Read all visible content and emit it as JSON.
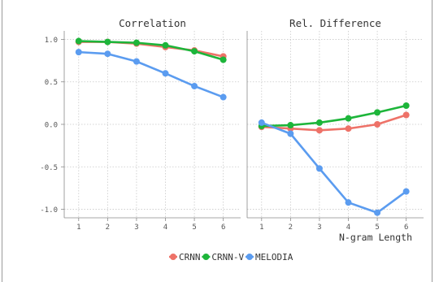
{
  "chart_data": [
    {
      "type": "line",
      "title": "Correlation",
      "x": [
        1,
        2,
        3,
        4,
        5,
        6
      ],
      "xlabel": "",
      "ylabel": "",
      "ylim": [
        -1.1,
        1.1
      ],
      "yticks": [
        "1.0",
        "0.5",
        "0.0",
        "-0.5",
        "-1.0"
      ],
      "series": [
        {
          "name": "CRNN",
          "values": [
            0.97,
            0.97,
            0.95,
            0.91,
            0.87,
            0.8
          ]
        },
        {
          "name": "CRNN-V",
          "values": [
            0.98,
            0.97,
            0.96,
            0.93,
            0.86,
            0.76
          ]
        },
        {
          "name": "MELODIA",
          "values": [
            0.85,
            0.83,
            0.74,
            0.6,
            0.45,
            0.32
          ]
        }
      ]
    },
    {
      "type": "line",
      "title": "Rel. Difference",
      "x": [
        1,
        2,
        3,
        4,
        5,
        6
      ],
      "xlabel": "N-gram Length",
      "ylabel": "",
      "ylim": [
        -1.1,
        1.1
      ],
      "series": [
        {
          "name": "CRNN",
          "values": [
            -0.03,
            -0.05,
            -0.07,
            -0.05,
            0.0,
            0.11
          ]
        },
        {
          "name": "CRNN-V",
          "values": [
            -0.02,
            -0.01,
            0.02,
            0.07,
            0.14,
            0.22
          ]
        },
        {
          "name": "MELODIA",
          "values": [
            0.02,
            -0.11,
            -0.52,
            -0.92,
            -1.04,
            -0.79
          ]
        }
      ]
    }
  ],
  "legend": {
    "position": "bottom",
    "items": [
      {
        "label": "CRNN",
        "color": "#ee7268"
      },
      {
        "label": "CRNN-V",
        "color": "#1db53a"
      },
      {
        "label": "MELODIA",
        "color": "#5b9cf0"
      }
    ]
  },
  "style": {
    "grid": true,
    "panel_background": "#ffffff",
    "grid_color": "#c8c8c8",
    "axis_color": "#8a8a8a"
  }
}
